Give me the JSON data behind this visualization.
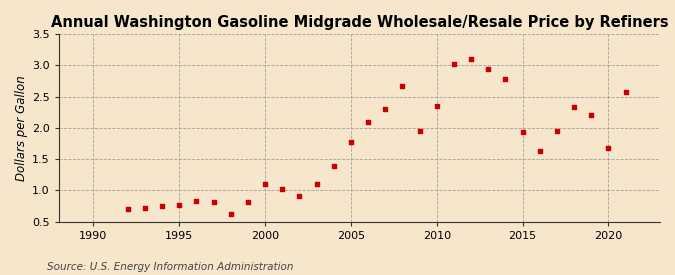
{
  "title": "Annual Washington Gasoline Midgrade Wholesale/Resale Price by Refiners",
  "ylabel": "Dollars per Gallon",
  "source": "Source: U.S. Energy Information Administration",
  "background_color": "#f5e6cc",
  "marker_color": "#cc0000",
  "data": [
    [
      1992,
      0.7
    ],
    [
      1993,
      0.72
    ],
    [
      1994,
      0.75
    ],
    [
      1995,
      0.76
    ],
    [
      1996,
      0.83
    ],
    [
      1997,
      0.82
    ],
    [
      1998,
      0.63
    ],
    [
      1999,
      0.82
    ],
    [
      2000,
      1.11
    ],
    [
      2001,
      1.03
    ],
    [
      2002,
      0.91
    ],
    [
      2003,
      1.11
    ],
    [
      2004,
      1.39
    ],
    [
      2005,
      1.78
    ],
    [
      2006,
      2.1
    ],
    [
      2007,
      2.3
    ],
    [
      2008,
      2.67
    ],
    [
      2009,
      1.95
    ],
    [
      2010,
      2.35
    ],
    [
      2011,
      3.02
    ],
    [
      2012,
      3.1
    ],
    [
      2013,
      2.94
    ],
    [
      2014,
      2.78
    ],
    [
      2015,
      1.93
    ],
    [
      2016,
      1.63
    ],
    [
      2017,
      1.95
    ],
    [
      2018,
      2.34
    ],
    [
      2019,
      2.2
    ],
    [
      2020,
      1.68
    ],
    [
      2021,
      2.57
    ]
  ],
  "xlim": [
    1988,
    2023
  ],
  "ylim": [
    0.5,
    3.5
  ],
  "xticks": [
    1990,
    1995,
    2000,
    2005,
    2010,
    2015,
    2020
  ],
  "yticks": [
    0.5,
    1.0,
    1.5,
    2.0,
    2.5,
    3.0,
    3.5
  ],
  "grid_color": "#999999",
  "title_fontsize": 10.5,
  "label_fontsize": 8.5,
  "tick_fontsize": 8,
  "source_fontsize": 7.5
}
